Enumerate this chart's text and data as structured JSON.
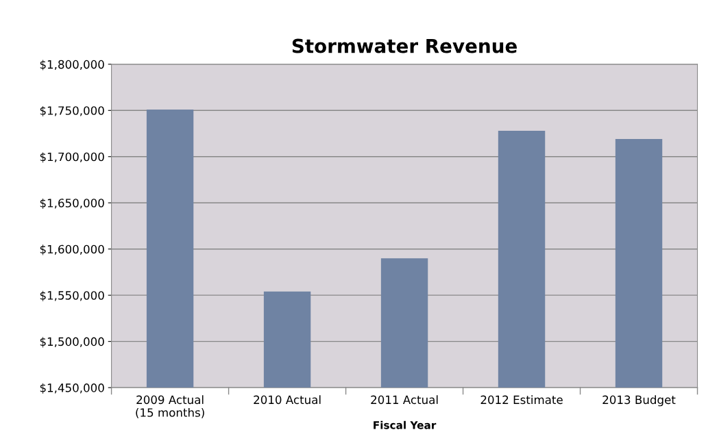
{
  "chart_data": {
    "type": "bar",
    "title": "Stormwater Revenue",
    "xlabel": "Fiscal Year",
    "categories": [
      "2009 Actual\n(15 months)",
      "2010 Actual",
      "2011 Actual",
      "2012 Estimate",
      "2013 Budget"
    ],
    "values": [
      1751000,
      1554000,
      1590000,
      1728000,
      1719000
    ],
    "color": "#6f83a3",
    "ylim": [
      1450000,
      1800000
    ],
    "yticks": [
      {
        "value": 1450000,
        "label": "$1,450,000"
      },
      {
        "value": 1500000,
        "label": "$1,500,000"
      },
      {
        "value": 1550000,
        "label": "$1,550,000"
      },
      {
        "value": 1600000,
        "label": "$1,600,000"
      },
      {
        "value": 1650000,
        "label": "$1,650,000"
      },
      {
        "value": 1700000,
        "label": "$1,700,000"
      },
      {
        "value": 1750000,
        "label": "$1,750,000"
      },
      {
        "value": 1800000,
        "label": "$1,800,000"
      }
    ],
    "grid": "y",
    "legend": false
  }
}
